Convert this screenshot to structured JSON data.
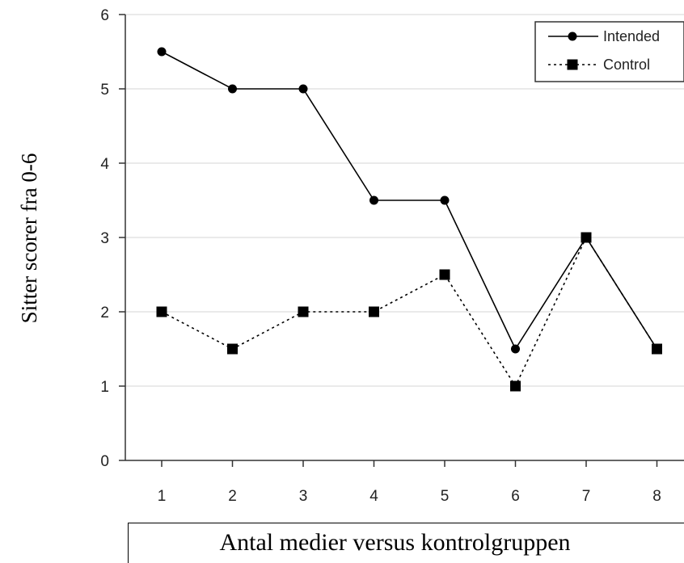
{
  "chart_data": {
    "type": "line",
    "xlabel": "Antal medier versus kontrolgruppen",
    "ylabel": "Sitter scorer fra 0-6",
    "x": [
      1,
      2,
      3,
      4,
      5,
      6,
      7,
      8
    ],
    "ylim": [
      0,
      6
    ],
    "xlim": [
      0.5,
      8.5
    ],
    "yticks": [
      0,
      1,
      2,
      3,
      4,
      5,
      6
    ],
    "grid": "horizontal",
    "legend_position": "top-right",
    "series": [
      {
        "name": "Intended",
        "style": "solid",
        "marker": "circle",
        "color": "#000000",
        "values": [
          5.5,
          5,
          5,
          3.5,
          3.5,
          1.5,
          3,
          1.5
        ]
      },
      {
        "name": "Control",
        "style": "dotted",
        "marker": "square",
        "color": "#000000",
        "values": [
          2,
          1.5,
          2,
          2,
          2.5,
          1,
          3,
          1.5
        ]
      }
    ]
  }
}
